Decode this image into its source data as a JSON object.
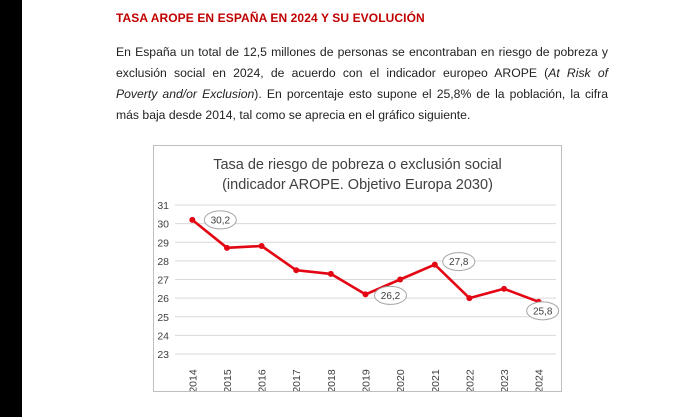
{
  "document": {
    "heading": "TASA AROPE EN ESPAÑA EN 2024 Y SU EVOLUCIÓN",
    "paragraph_lines": [
      "En España un total de 12,5 millones de personas se encontraban en riesgo de pobreza y",
      "exclusión social en 2024, de acuerdo con el indicador europeo AROPE (",
      "). En porcentaje esto supone el 25,8% de la población, la cifra",
      "más baja desde 2014, tal como se aprecia en el gráfico siguiente."
    ],
    "italic_1": "At Risk of",
    "italic_2": "Poverty and/or Exclusion"
  },
  "colors": {
    "heading": "#c00000",
    "series_line": "#e30613",
    "text": "#222222"
  },
  "chart_data": {
    "type": "line",
    "title_line1": "Tasa de riesgo de pobreza o exclusión social",
    "title_line2": "(indicador AROPE. Objetivo Europa 2030)",
    "x": [
      "2014",
      "2015",
      "2016",
      "2017",
      "2018",
      "2019",
      "2020",
      "2021",
      "2022",
      "2023",
      "2024"
    ],
    "values": [
      30.2,
      28.7,
      28.8,
      27.5,
      27.3,
      26.2,
      27.0,
      27.8,
      26.0,
      26.5,
      25.8
    ],
    "ylim": [
      23,
      31
    ],
    "yticks": [
      "23",
      "24",
      "25",
      "26",
      "27",
      "28",
      "29",
      "30",
      "31"
    ],
    "grid": true,
    "legend": false,
    "data_labels": [
      {
        "year": "2014",
        "text": "30,2"
      },
      {
        "year": "2019",
        "text": "26,2"
      },
      {
        "year": "2021",
        "text": "27,8"
      },
      {
        "year": "2024",
        "text": "25,8"
      }
    ]
  }
}
